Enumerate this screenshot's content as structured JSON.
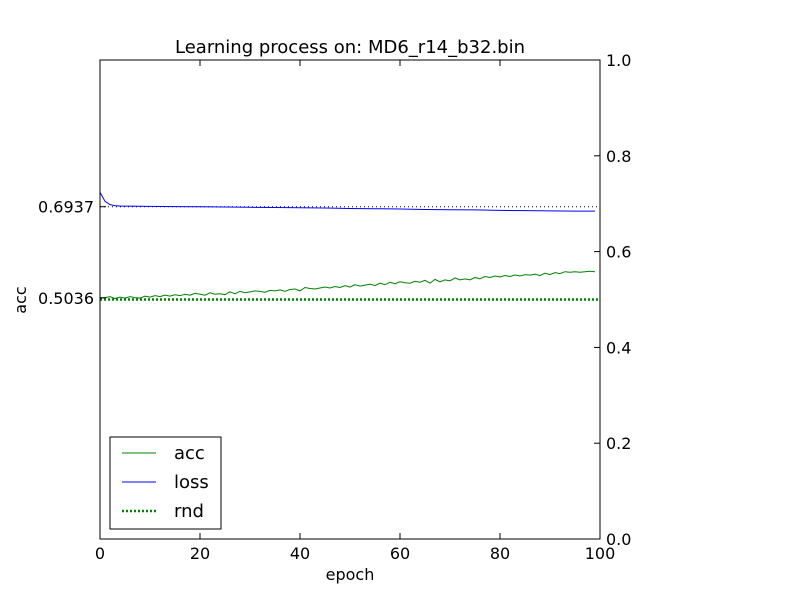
{
  "chart_data": {
    "type": "line",
    "title": "Learning process on: MD6_r14_b32.bin",
    "xlabel": "epoch",
    "ylabel": "acc",
    "xlim": [
      0,
      100
    ],
    "ylim": [
      0,
      1.0
    ],
    "grid": false,
    "legend_position": "lower-left",
    "x_ticks": [
      0,
      20,
      40,
      60,
      80,
      100
    ],
    "x_tick_labels": [
      "0",
      "20",
      "40",
      "60",
      "80",
      "100"
    ],
    "y_ticks_right": [
      0.0,
      0.2,
      0.4,
      0.6,
      0.8,
      1.0
    ],
    "y_tick_labels_right": [
      "0.0",
      "0.2",
      "0.4",
      "0.6",
      "0.8",
      "1.0"
    ],
    "y_ticks_left": [
      0.6937,
      0.5036
    ],
    "y_tick_labels_left": [
      "0.6937",
      "0.5036"
    ],
    "reference_line": {
      "y": 0.6937,
      "color": "#000000",
      "style": "dotted"
    },
    "series": [
      {
        "name": "acc",
        "color": "#008000",
        "style": "solid",
        "x": [
          0,
          1,
          2,
          3,
          4,
          5,
          6,
          7,
          8,
          9,
          10,
          11,
          12,
          13,
          14,
          15,
          16,
          17,
          18,
          19,
          20,
          21,
          22,
          23,
          24,
          25,
          26,
          27,
          28,
          29,
          30,
          31,
          32,
          33,
          34,
          35,
          36,
          37,
          38,
          39,
          40,
          41,
          42,
          43,
          44,
          45,
          46,
          47,
          48,
          49,
          50,
          51,
          52,
          53,
          54,
          55,
          56,
          57,
          58,
          59,
          60,
          61,
          62,
          63,
          64,
          65,
          66,
          67,
          68,
          69,
          70,
          71,
          72,
          73,
          74,
          75,
          76,
          77,
          78,
          79,
          80,
          81,
          82,
          83,
          84,
          85,
          86,
          87,
          88,
          89,
          90,
          91,
          92,
          93,
          94,
          95,
          96,
          97,
          98,
          99
        ],
        "values": [
          0.503,
          0.504,
          0.506,
          0.502,
          0.505,
          0.503,
          0.506,
          0.504,
          0.503,
          0.507,
          0.505,
          0.508,
          0.506,
          0.509,
          0.507,
          0.51,
          0.508,
          0.511,
          0.509,
          0.513,
          0.511,
          0.509,
          0.514,
          0.511,
          0.512,
          0.51,
          0.516,
          0.512,
          0.517,
          0.514,
          0.516,
          0.518,
          0.517,
          0.515,
          0.519,
          0.518,
          0.52,
          0.517,
          0.521,
          0.522,
          0.518,
          0.525,
          0.523,
          0.522,
          0.524,
          0.526,
          0.524,
          0.527,
          0.525,
          0.529,
          0.526,
          0.531,
          0.528,
          0.53,
          0.532,
          0.529,
          0.534,
          0.531,
          0.536,
          0.533,
          0.537,
          0.535,
          0.534,
          0.538,
          0.536,
          0.54,
          0.534,
          0.542,
          0.537,
          0.541,
          0.539,
          0.545,
          0.541,
          0.543,
          0.541,
          0.546,
          0.543,
          0.548,
          0.546,
          0.549,
          0.547,
          0.55,
          0.548,
          0.551,
          0.549,
          0.552,
          0.551,
          0.553,
          0.55,
          0.555,
          0.552,
          0.556,
          0.554,
          0.558,
          0.557,
          0.558,
          0.557,
          0.558,
          0.559,
          0.558
        ]
      },
      {
        "name": "loss",
        "color": "#0000ff",
        "style": "solid",
        "x": [
          0,
          1,
          2,
          3,
          4,
          5,
          10,
          15,
          20,
          25,
          30,
          35,
          40,
          45,
          50,
          55,
          60,
          65,
          70,
          75,
          80,
          85,
          90,
          95,
          99
        ],
        "values": [
          0.724,
          0.705,
          0.698,
          0.696,
          0.695,
          0.695,
          0.6945,
          0.694,
          0.6935,
          0.693,
          0.6925,
          0.692,
          0.6915,
          0.691,
          0.69,
          0.6895,
          0.689,
          0.688,
          0.6875,
          0.687,
          0.686,
          0.6855,
          0.685,
          0.6845,
          0.6845
        ]
      },
      {
        "name": "rnd",
        "color": "#008000",
        "style": "dotted",
        "x": [
          0,
          100
        ],
        "values": [
          0.5,
          0.5
        ]
      }
    ]
  }
}
